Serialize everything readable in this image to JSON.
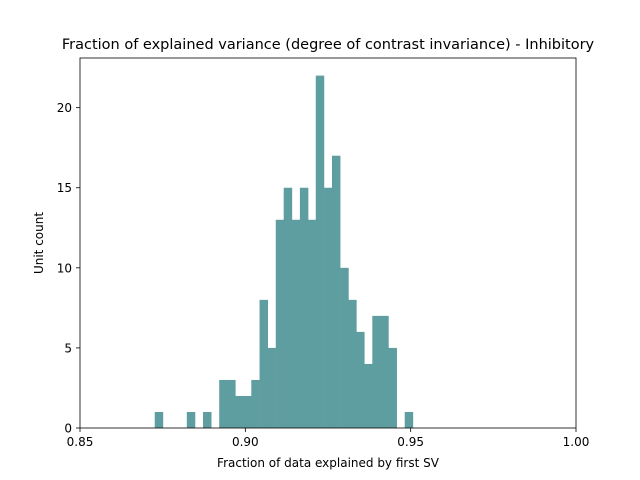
{
  "chart_data": {
    "type": "bar",
    "title": "Fraction of explained variance (degree of contrast invariance) - Inhibitory",
    "xlabel": "Fraction of data explained by first SV",
    "ylabel": "Unit count",
    "xlim": [
      0.85,
      1.0
    ],
    "ylim": [
      0,
      23.1
    ],
    "xticks": [
      "0.85",
      "0.90",
      "0.95",
      "1.00"
    ],
    "xtick_values": [
      0.85,
      0.9,
      0.95,
      1.0
    ],
    "yticks": [
      "0",
      "5",
      "10",
      "15",
      "20"
    ],
    "ytick_values": [
      0,
      5,
      10,
      15,
      20
    ],
    "bar_color": "#5f9ea0",
    "bin_width": 0.00244,
    "bins": [
      {
        "x0": 0.8726,
        "count": 1
      },
      {
        "x0": 0.875,
        "count": 0
      },
      {
        "x0": 0.8775,
        "count": 0
      },
      {
        "x0": 0.8799,
        "count": 0
      },
      {
        "x0": 0.8823,
        "count": 1
      },
      {
        "x0": 0.8848,
        "count": 0
      },
      {
        "x0": 0.8872,
        "count": 1
      },
      {
        "x0": 0.8897,
        "count": 0
      },
      {
        "x0": 0.8921,
        "count": 3
      },
      {
        "x0": 0.8945,
        "count": 3
      },
      {
        "x0": 0.897,
        "count": 2
      },
      {
        "x0": 0.8994,
        "count": 2
      },
      {
        "x0": 0.9018,
        "count": 3
      },
      {
        "x0": 0.9043,
        "count": 8
      },
      {
        "x0": 0.9067,
        "count": 5
      },
      {
        "x0": 0.9092,
        "count": 13
      },
      {
        "x0": 0.9116,
        "count": 15
      },
      {
        "x0": 0.914,
        "count": 13
      },
      {
        "x0": 0.9165,
        "count": 15
      },
      {
        "x0": 0.9189,
        "count": 13
      },
      {
        "x0": 0.9213,
        "count": 22
      },
      {
        "x0": 0.9238,
        "count": 15
      },
      {
        "x0": 0.9262,
        "count": 17
      },
      {
        "x0": 0.9287,
        "count": 10
      },
      {
        "x0": 0.9311,
        "count": 8
      },
      {
        "x0": 0.9335,
        "count": 6
      },
      {
        "x0": 0.936,
        "count": 4
      },
      {
        "x0": 0.9384,
        "count": 7
      },
      {
        "x0": 0.9408,
        "count": 7
      },
      {
        "x0": 0.9433,
        "count": 5
      },
      {
        "x0": 0.9457,
        "count": 0
      },
      {
        "x0": 0.9482,
        "count": 1
      }
    ]
  }
}
